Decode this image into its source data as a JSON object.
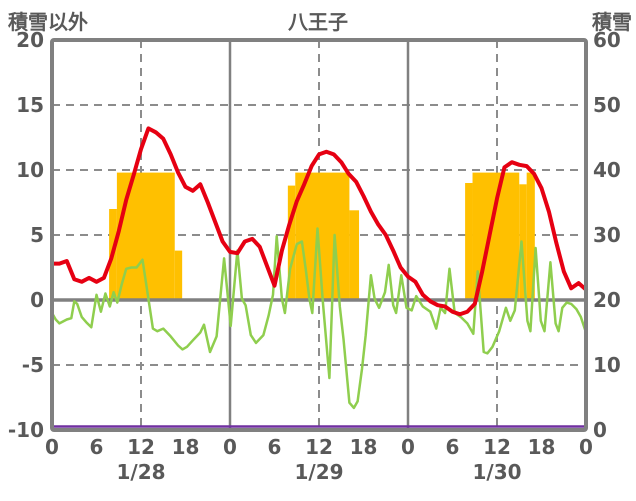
{
  "header": {
    "left_axis_title": "積雪以外",
    "chart_title": "八王子",
    "right_axis_title": "積雪"
  },
  "colors": {
    "red_line": "#e60012",
    "green_line": "#8fce4e",
    "orange_bars": "#ffc000",
    "purple_line": "#7030a0",
    "axis_gray": "#808080",
    "grid_gray": "#8c8c8c",
    "text_gray": "#595959",
    "background": "#ffffff"
  },
  "chart_data": {
    "type": "line",
    "title": "八王子",
    "left_axis": {
      "label": "積雪以外",
      "min": -10,
      "max": 20,
      "ticks": [
        20,
        15,
        10,
        5,
        0,
        -5,
        -10
      ],
      "dashed_gridlines": [
        15,
        10,
        5,
        -5
      ],
      "zero_line": 0
    },
    "right_axis": {
      "label": "積雪",
      "min": 0,
      "max": 60,
      "ticks": [
        60,
        50,
        40,
        30,
        20,
        10,
        0
      ]
    },
    "x_axis": {
      "min_hour": 0,
      "max_hour": 72,
      "tick_step_hours": 6,
      "hour_tick_labels": [
        "0",
        "6",
        "12",
        "18",
        "0",
        "6",
        "12",
        "18",
        "0",
        "6",
        "12",
        "18",
        "0"
      ],
      "day_labels": [
        "1/28",
        "1/29",
        "1/30"
      ],
      "day_label_center_hours": [
        12,
        36,
        60
      ],
      "solid_gridline_hours": [
        24,
        48
      ],
      "dashed_gridline_hours": [
        12,
        36,
        60
      ]
    },
    "series": [
      {
        "name": "orange-bars",
        "type": "bars",
        "axis": "left",
        "color": "#ffc000",
        "segments": [
          [
            7.7,
            8.75,
            7.0
          ],
          [
            8.75,
            16.55,
            9.8
          ],
          [
            16.55,
            17.55,
            3.8
          ],
          [
            31.8,
            32.8,
            8.8
          ],
          [
            32.8,
            40.1,
            9.8
          ],
          [
            40.1,
            41.4,
            6.9
          ],
          [
            55.7,
            56.7,
            9.0
          ],
          [
            56.7,
            63.0,
            9.8
          ],
          [
            63.0,
            64.0,
            8.9
          ],
          [
            64.0,
            65.1,
            9.8
          ]
        ]
      },
      {
        "name": "green-line",
        "type": "line",
        "axis": "left",
        "color": "#8fce4e",
        "width": 2.5,
        "points": [
          [
            0,
            -1.0
          ],
          [
            0.5,
            -1.5
          ],
          [
            1,
            -1.8
          ],
          [
            2,
            -1.5
          ],
          [
            2.6,
            -1.4
          ],
          [
            3,
            -0.1
          ],
          [
            3.4,
            -0.3
          ],
          [
            4,
            -1.3
          ],
          [
            4.6,
            -1.7
          ],
          [
            5.3,
            -2.1
          ],
          [
            6,
            0.4
          ],
          [
            6.6,
            -0.9
          ],
          [
            7.2,
            0.5
          ],
          [
            7.8,
            -0.5
          ],
          [
            8.3,
            0.6
          ],
          [
            8.8,
            -0.2
          ],
          [
            9.4,
            1.2
          ],
          [
            10,
            2.4
          ],
          [
            10.7,
            2.5
          ],
          [
            11.4,
            2.5
          ],
          [
            12.2,
            3.1
          ],
          [
            13,
            0.1
          ],
          [
            13.6,
            -2.2
          ],
          [
            14.2,
            -2.4
          ],
          [
            15,
            -2.2
          ],
          [
            16,
            -2.8
          ],
          [
            17,
            -3.5
          ],
          [
            17.6,
            -3.8
          ],
          [
            18.2,
            -3.6
          ],
          [
            19,
            -3.1
          ],
          [
            20,
            -2.5
          ],
          [
            20.5,
            -1.9
          ],
          [
            21.3,
            -4.0
          ],
          [
            22.2,
            -2.8
          ],
          [
            23.2,
            3.2
          ],
          [
            24.1,
            -2.0
          ],
          [
            25,
            3.8
          ],
          [
            25.6,
            0.1
          ],
          [
            26.1,
            -0.4
          ],
          [
            26.8,
            -2.7
          ],
          [
            27.5,
            -3.3
          ],
          [
            28.5,
            -2.7
          ],
          [
            29.2,
            -1.2
          ],
          [
            29.8,
            0.4
          ],
          [
            30.3,
            4.9
          ],
          [
            31,
            0.1
          ],
          [
            31.4,
            -1.0
          ],
          [
            32.1,
            2.4
          ],
          [
            33,
            4.3
          ],
          [
            33.7,
            4.5
          ],
          [
            34.2,
            2.4
          ],
          [
            34.7,
            0.1
          ],
          [
            35.1,
            -1.0
          ],
          [
            35.8,
            5.5
          ],
          [
            36.5,
            0.0
          ],
          [
            37.4,
            -6.0
          ],
          [
            38.1,
            5.0
          ],
          [
            38.8,
            -0.5
          ],
          [
            39.3,
            -3.0
          ],
          [
            40.1,
            -7.9
          ],
          [
            40.7,
            -8.3
          ],
          [
            41.2,
            -7.8
          ],
          [
            41.8,
            -5.3
          ],
          [
            42.3,
            -2.7
          ],
          [
            43,
            1.9
          ],
          [
            43.5,
            0.1
          ],
          [
            44.1,
            -0.6
          ],
          [
            44.9,
            0.6
          ],
          [
            45.4,
            2.7
          ],
          [
            46,
            -0.4
          ],
          [
            46.4,
            -1.0
          ],
          [
            47.1,
            1.9
          ],
          [
            47.8,
            -0.6
          ],
          [
            48.5,
            -0.8
          ],
          [
            49.1,
            0.3
          ],
          [
            50,
            -0.5
          ],
          [
            51,
            -0.9
          ],
          [
            51.8,
            -2.2
          ],
          [
            52.4,
            -0.6
          ],
          [
            53,
            -1.0
          ],
          [
            53.6,
            2.4
          ],
          [
            54.3,
            -1.0
          ],
          [
            55.1,
            -1.3
          ],
          [
            56,
            -1.8
          ],
          [
            56.8,
            -2.6
          ],
          [
            57.4,
            2.2
          ],
          [
            58.2,
            -4.0
          ],
          [
            58.7,
            -4.1
          ],
          [
            59.4,
            -3.6
          ],
          [
            60.3,
            -2.4
          ],
          [
            61.2,
            -0.6
          ],
          [
            61.8,
            -1.6
          ],
          [
            62.4,
            -0.8
          ],
          [
            63.3,
            4.5
          ],
          [
            64.1,
            -1.6
          ],
          [
            64.5,
            -2.4
          ],
          [
            65.2,
            4.0
          ],
          [
            65.9,
            -1.6
          ],
          [
            66.4,
            -2.4
          ],
          [
            67.2,
            2.9
          ],
          [
            67.9,
            -1.8
          ],
          [
            68.3,
            -2.4
          ],
          [
            68.8,
            -0.6
          ],
          [
            69.4,
            -0.2
          ],
          [
            70,
            -0.3
          ],
          [
            70.7,
            -0.7
          ],
          [
            71.3,
            -1.3
          ],
          [
            72,
            -2.5
          ]
        ]
      },
      {
        "name": "red-line",
        "type": "line",
        "axis": "left",
        "color": "#e60012",
        "width": 4,
        "points": [
          [
            0,
            2.8
          ],
          [
            1,
            2.8
          ],
          [
            2,
            3.0
          ],
          [
            3,
            1.6
          ],
          [
            4,
            1.4
          ],
          [
            5,
            1.7
          ],
          [
            6,
            1.4
          ],
          [
            7,
            1.7
          ],
          [
            8,
            3.2
          ],
          [
            9,
            5.3
          ],
          [
            10,
            7.7
          ],
          [
            11,
            9.6
          ],
          [
            12,
            11.6
          ],
          [
            13,
            13.2
          ],
          [
            14,
            12.9
          ],
          [
            15,
            12.4
          ],
          [
            16,
            11.2
          ],
          [
            17,
            9.8
          ],
          [
            18,
            8.7
          ],
          [
            19,
            8.4
          ],
          [
            20,
            8.9
          ],
          [
            21,
            7.5
          ],
          [
            22,
            6.0
          ],
          [
            23,
            4.5
          ],
          [
            24,
            3.7
          ],
          [
            25,
            3.6
          ],
          [
            26,
            4.5
          ],
          [
            27,
            4.7
          ],
          [
            28,
            4.1
          ],
          [
            29,
            2.6
          ],
          [
            30,
            1.1
          ],
          [
            31,
            3.8
          ],
          [
            32,
            5.8
          ],
          [
            33,
            7.6
          ],
          [
            34,
            8.9
          ],
          [
            35,
            10.3
          ],
          [
            36,
            11.2
          ],
          [
            37,
            11.4
          ],
          [
            38,
            11.2
          ],
          [
            39,
            10.6
          ],
          [
            40,
            9.7
          ],
          [
            41,
            9.1
          ],
          [
            42,
            8.0
          ],
          [
            43,
            6.8
          ],
          [
            44,
            5.8
          ],
          [
            45,
            5.0
          ],
          [
            46,
            3.8
          ],
          [
            47,
            2.5
          ],
          [
            48,
            1.8
          ],
          [
            49,
            1.4
          ],
          [
            50,
            0.4
          ],
          [
            51,
            -0.1
          ],
          [
            52,
            -0.4
          ],
          [
            53,
            -0.5
          ],
          [
            54,
            -0.9
          ],
          [
            55,
            -1.1
          ],
          [
            56,
            -0.9
          ],
          [
            57,
            -0.3
          ],
          [
            58,
            2.2
          ],
          [
            59,
            5.0
          ],
          [
            60,
            7.8
          ],
          [
            61,
            10.2
          ],
          [
            62,
            10.6
          ],
          [
            63,
            10.4
          ],
          [
            64,
            10.3
          ],
          [
            65,
            9.7
          ],
          [
            66,
            8.6
          ],
          [
            67,
            6.8
          ],
          [
            68,
            4.4
          ],
          [
            69,
            2.2
          ],
          [
            70,
            0.9
          ],
          [
            71,
            1.3
          ],
          [
            72,
            0.8
          ]
        ]
      },
      {
        "name": "purple-line",
        "type": "line",
        "axis": "right",
        "color": "#7030a0",
        "width": 2.5,
        "dy": -3.5,
        "points": [
          [
            0,
            0
          ],
          [
            72,
            0
          ]
        ]
      }
    ]
  }
}
